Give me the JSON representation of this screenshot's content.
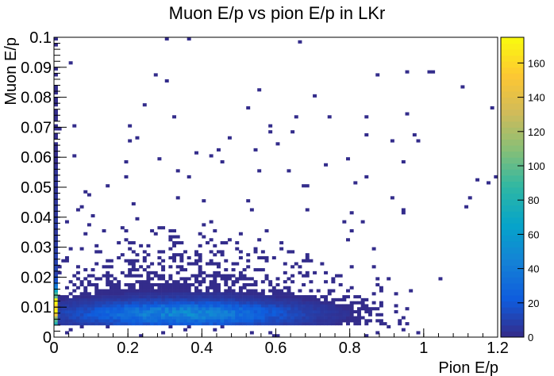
{
  "chart_data": {
    "type": "heatmap",
    "title": "Muon E/p vs pion E/p in LKr",
    "xlabel": "Pion E/p",
    "ylabel": "Muon E/p",
    "xlim": [
      0,
      1.2
    ],
    "ylim": [
      0,
      0.1
    ],
    "x_ticks": [
      "0",
      "0.2",
      "0.4",
      "0.6",
      "0.8",
      "1",
      "1.2"
    ],
    "y_ticks": [
      "0",
      "0.01",
      "0.02",
      "0.03",
      "0.04",
      "0.05",
      "0.06",
      "0.07",
      "0.08",
      "0.09",
      "0.1"
    ],
    "colorbar_range": [
      0,
      175
    ],
    "colorbar_ticks": [
      "0",
      "20",
      "40",
      "60",
      "80",
      "100",
      "120",
      "140",
      "160"
    ],
    "colormap": [
      "#352a87",
      "#0f5cdd",
      "#1481d6",
      "#06a4ca",
      "#2eb7a4",
      "#87bf77",
      "#d1bb59",
      "#fec832",
      "#f9fb0e"
    ],
    "grid": false,
    "density_peak": {
      "x": 0.35,
      "y": 0.008,
      "value": 40
    },
    "hot_spot": {
      "x": 0.005,
      "y": 0.01,
      "value": 175
    }
  }
}
